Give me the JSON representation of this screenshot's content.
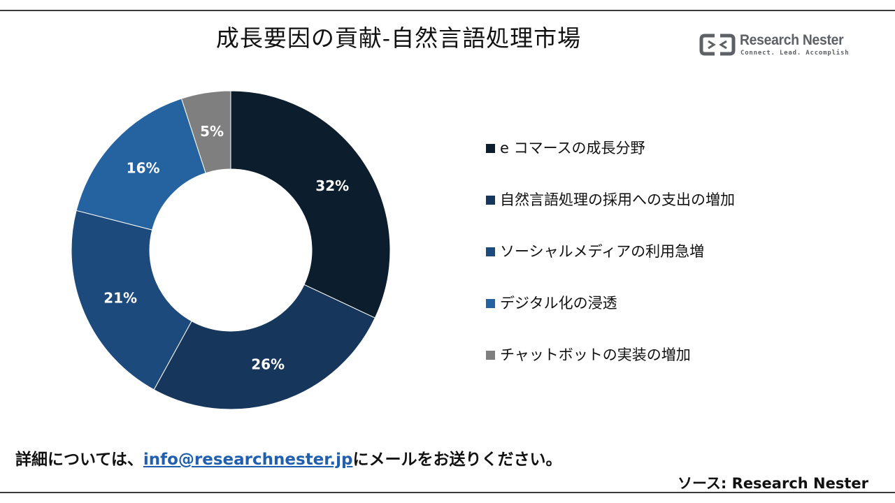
{
  "title": "成長要因の貢献-自然言語処理市場",
  "logo": {
    "name": "Research Nester",
    "tagline": "Connect. Lead. Accomplish"
  },
  "chart_data": {
    "type": "pie",
    "donut": true,
    "title": "成長要因の貢献-自然言語処理市場",
    "legend_position": "right",
    "slices": [
      {
        "label": "e コマースの成長分野",
        "value": 32,
        "display": "32%",
        "color": "#0c1e2e"
      },
      {
        "label": "自然言語処理の採用への支出の増加",
        "value": 26,
        "display": "26%",
        "color": "#17365c"
      },
      {
        "label": "ソーシャルメディアの利用急増",
        "value": 21,
        "display": "21%",
        "color": "#1d4a7c"
      },
      {
        "label": "デジタル化の浸透",
        "value": 16,
        "display": "16%",
        "color": "#2563a0"
      },
      {
        "label": "チャットボットの実装の増加",
        "value": 5,
        "display": "5%",
        "color": "#7f7f7f"
      }
    ]
  },
  "footer": {
    "prefix": "詳細については、",
    "email": "info@researchnester.jp",
    "suffix": "にメールをお送りください。"
  },
  "source": "ソース: Research Nester"
}
